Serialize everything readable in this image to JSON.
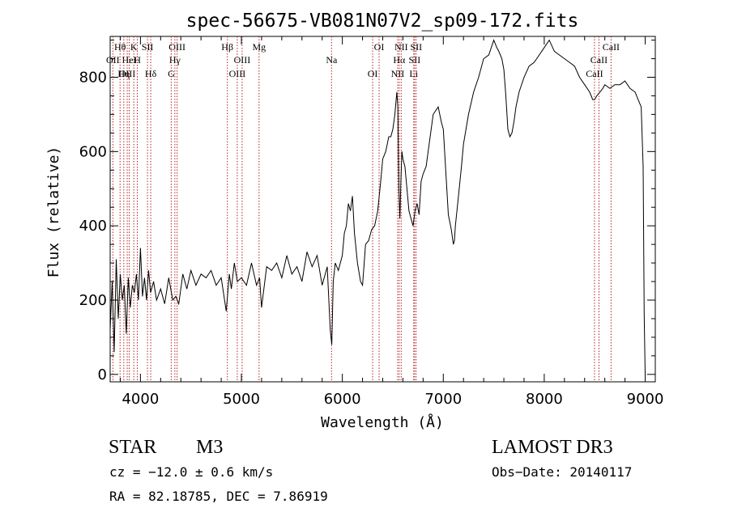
{
  "chart_data": {
    "type": "line",
    "title": "spec-56675-VB081N07V2_sp09-172.fits",
    "xlabel": "Wavelength (Å)",
    "ylabel": "Flux (relative)",
    "xlim": [
      3700,
      9100
    ],
    "ylim": [
      -20,
      910
    ],
    "x_ticks": [
      4000,
      5000,
      6000,
      7000,
      8000,
      9000
    ],
    "y_ticks": [
      0,
      200,
      400,
      600,
      800
    ],
    "x_tick_labels": [
      "4000",
      "5000",
      "6000",
      "7000",
      "8000",
      "9000"
    ],
    "y_tick_labels": [
      "0",
      "200",
      "400",
      "600",
      "800"
    ],
    "series": [
      {
        "name": "flux",
        "x": [
          3700,
          3720,
          3740,
          3760,
          3780,
          3800,
          3820,
          3840,
          3860,
          3880,
          3900,
          3920,
          3940,
          3960,
          3980,
          4000,
          4020,
          4040,
          4060,
          4080,
          4100,
          4130,
          4160,
          4200,
          4240,
          4280,
          4320,
          4350,
          4380,
          4420,
          4460,
          4500,
          4550,
          4600,
          4650,
          4700,
          4750,
          4800,
          4850,
          4880,
          4900,
          4930,
          4960,
          5000,
          5050,
          5100,
          5150,
          5180,
          5200,
          5250,
          5300,
          5350,
          5400,
          5450,
          5500,
          5550,
          5600,
          5650,
          5700,
          5750,
          5800,
          5850,
          5880,
          5895,
          5910,
          5930,
          5960,
          6000,
          6020,
          6040,
          6060,
          6080,
          6100,
          6120,
          6150,
          6180,
          6200,
          6230,
          6260,
          6290,
          6320,
          6350,
          6380,
          6400,
          6430,
          6460,
          6480,
          6500,
          6520,
          6540,
          6550,
          6560,
          6570,
          6580,
          6590,
          6600,
          6620,
          6640,
          6660,
          6680,
          6700,
          6720,
          6740,
          6760,
          6780,
          6800,
          6830,
          6860,
          6900,
          6950,
          6980,
          7000,
          7050,
          7080,
          7100,
          7110,
          7120,
          7150,
          7180,
          7200,
          7250,
          7300,
          7350,
          7400,
          7450,
          7500,
          7530,
          7550,
          7580,
          7600,
          7620,
          7640,
          7660,
          7680,
          7700,
          7720,
          7750,
          7800,
          7850,
          7900,
          7950,
          8000,
          8050,
          8100,
          8150,
          8200,
          8250,
          8300,
          8350,
          8400,
          8450,
          8480,
          8500,
          8520,
          8550,
          8580,
          8600,
          8650,
          8700,
          8750,
          8800,
          8850,
          8900,
          8930,
          8960,
          8980,
          8990,
          9000
        ],
        "y": [
          120,
          250,
          60,
          310,
          150,
          270,
          200,
          240,
          110,
          260,
          180,
          240,
          220,
          270,
          200,
          340,
          210,
          260,
          200,
          280,
          220,
          250,
          200,
          230,
          190,
          260,
          200,
          210,
          190,
          270,
          230,
          280,
          240,
          270,
          260,
          280,
          240,
          260,
          170,
          270,
          230,
          300,
          250,
          260,
          240,
          300,
          240,
          260,
          180,
          290,
          280,
          300,
          260,
          320,
          270,
          290,
          250,
          330,
          290,
          320,
          240,
          290,
          120,
          80,
          250,
          300,
          280,
          320,
          380,
          400,
          460,
          440,
          480,
          380,
          300,
          250,
          240,
          350,
          360,
          390,
          400,
          440,
          520,
          580,
          600,
          640,
          640,
          660,
          700,
          760,
          720,
          500,
          420,
          520,
          600,
          580,
          560,
          500,
          440,
          420,
          400,
          440,
          460,
          430,
          520,
          540,
          560,
          620,
          700,
          720,
          680,
          660,
          430,
          390,
          350,
          360,
          400,
          480,
          560,
          620,
          700,
          760,
          800,
          850,
          860,
          900,
          880,
          870,
          850,
          820,
          750,
          660,
          640,
          650,
          680,
          720,
          760,
          800,
          830,
          840,
          860,
          880,
          900,
          870,
          860,
          850,
          840,
          830,
          800,
          780,
          760,
          740,
          740,
          750,
          760,
          770,
          780,
          770,
          780,
          780,
          790,
          770,
          760,
          740,
          720,
          560,
          160,
          0
        ]
      }
    ],
    "line_markers": [
      {
        "label": "Hθ",
        "wl": 3798
      },
      {
        "label": "OII",
        "wl": 3727
      },
      {
        "label": "OIII",
        "wl": 3869
      },
      {
        "label": "K",
        "wl": 3934
      },
      {
        "label": "HeI",
        "wl": 3889
      },
      {
        "label": "Hη",
        "wl": 3835
      },
      {
        "label": "SII",
        "wl": 4070
      },
      {
        "label": "H",
        "wl": 3969
      },
      {
        "label": "Hδ",
        "wl": 4102
      },
      {
        "label": "OIII",
        "wl": 4363
      },
      {
        "label": "Hγ",
        "wl": 4341
      },
      {
        "label": "G",
        "wl": 4305
      },
      {
        "label": "Hβ",
        "wl": 4861
      },
      {
        "label": "OIII",
        "wl": 5007
      },
      {
        "label": "OIII",
        "wl": 4959
      },
      {
        "label": "Mg",
        "wl": 5175
      },
      {
        "label": "Na",
        "wl": 5893
      },
      {
        "label": "OI",
        "wl": 6300
      },
      {
        "label": "OI",
        "wl": 6364
      },
      {
        "label": "Hα",
        "wl": 6563
      },
      {
        "label": "NII",
        "wl": 6548
      },
      {
        "label": "NII",
        "wl": 6583
      },
      {
        "label": "SII",
        "wl": 6716
      },
      {
        "label": "Li",
        "wl": 6707
      },
      {
        "label": "SII",
        "wl": 6731
      },
      {
        "label": "CaII",
        "wl": 8542
      },
      {
        "label": "CaII",
        "wl": 8498
      },
      {
        "label": "CaII",
        "wl": 8662
      }
    ]
  },
  "info": {
    "class": "STAR",
    "subclass": "M3",
    "survey": "LAMOST DR3",
    "cz": "cz = −12.0 ± 0.6 km/s",
    "obs_date": "Obs−Date: 20140117",
    "radec": "RA =  82.18785, DEC =   7.86919"
  }
}
